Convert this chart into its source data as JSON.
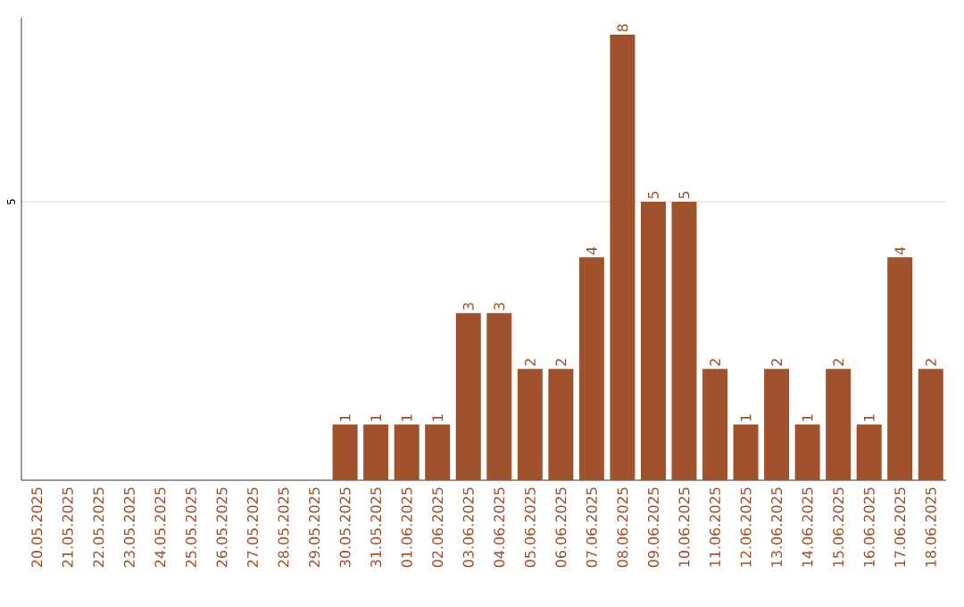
{
  "chart_data": {
    "type": "bar",
    "categories": [
      "20.05.2025",
      "21.05.2025",
      "22.05.2025",
      "23.05.2025",
      "24.05.2025",
      "25.05.2025",
      "26.05.2025",
      "27.05.2025",
      "28.05.2025",
      "29.05.2025",
      "30.05.2025",
      "31.05.2025",
      "01.06.2025",
      "02.06.2025",
      "03.06.2025",
      "04.06.2025",
      "05.06.2025",
      "06.06.2025",
      "07.06.2025",
      "08.06.2025",
      "09.06.2025",
      "10.06.2025",
      "11.06.2025",
      "12.06.2025",
      "13.06.2025",
      "14.06.2025",
      "15.06.2025",
      "16.06.2025",
      "17.06.2025",
      "18.06.2025"
    ],
    "values": [
      0,
      0,
      0,
      0,
      0,
      0,
      0,
      0,
      0,
      0,
      1,
      1,
      1,
      1,
      3,
      3,
      2,
      2,
      4,
      8,
      5,
      5,
      2,
      1,
      2,
      1,
      2,
      1,
      4,
      2
    ],
    "value_labels": [
      null,
      null,
      null,
      null,
      null,
      null,
      null,
      null,
      null,
      null,
      "1",
      "1",
      "1",
      "1",
      "3",
      "3",
      "2",
      "2",
      "4",
      "8",
      "5",
      "5",
      "2",
      "1",
      "2",
      "1",
      "2",
      "1",
      "4",
      "2"
    ],
    "color": "#a0522d",
    "ylim": [
      0,
      8.3
    ],
    "yticks": [
      5
    ],
    "grid": "y"
  }
}
